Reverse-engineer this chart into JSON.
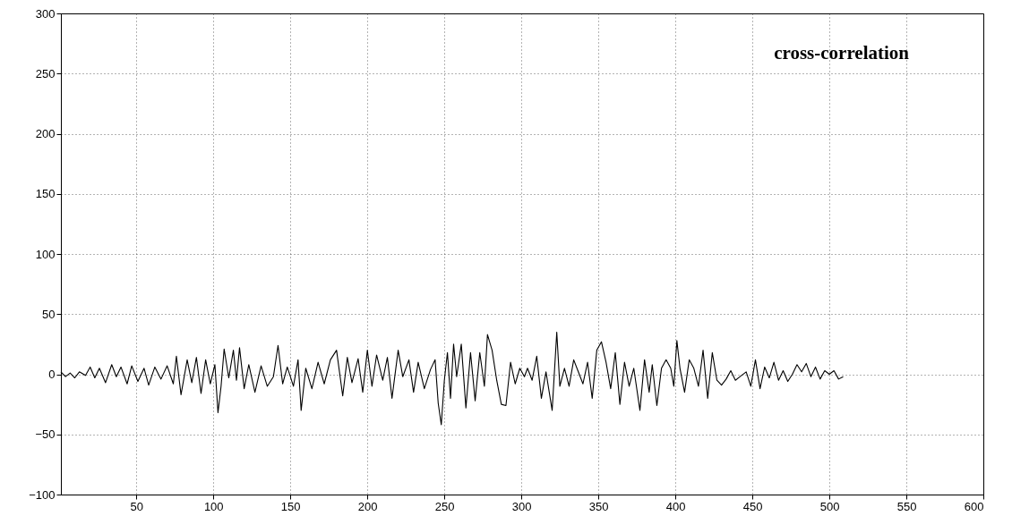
{
  "chart_data": {
    "type": "line",
    "annotations": [
      "cross-correlation"
    ],
    "x": [
      1,
      4,
      7,
      10,
      13,
      17,
      20,
      23,
      26,
      30,
      34,
      37,
      40,
      44,
      47,
      51,
      55,
      58,
      62,
      66,
      70,
      74,
      76,
      79,
      83,
      86,
      89,
      92,
      95,
      98,
      101,
      103,
      105,
      107,
      110,
      113,
      115,
      117,
      120,
      123,
      127,
      131,
      135,
      139,
      142,
      145,
      148,
      152,
      155,
      157,
      160,
      164,
      168,
      172,
      176,
      180,
      184,
      187,
      190,
      194,
      197,
      200,
      203,
      206,
      210,
      213,
      216,
      220,
      223,
      227,
      230,
      233,
      237,
      241,
      244,
      246,
      248,
      250,
      252,
      254,
      256,
      258,
      261,
      264,
      267,
      270,
      273,
      276,
      278,
      281,
      284,
      287,
      290,
      293,
      296,
      299,
      302,
      304,
      307,
      310,
      313,
      316,
      320,
      323,
      325,
      328,
      331,
      334,
      337,
      340,
      343,
      346,
      349,
      352,
      355,
      358,
      361,
      364,
      367,
      370,
      373,
      377,
      380,
      383,
      385,
      388,
      391,
      394,
      397,
      399,
      401,
      403,
      406,
      409,
      412,
      415,
      418,
      421,
      424,
      427,
      430,
      433,
      436,
      439,
      442,
      446,
      449,
      452,
      455,
      458,
      461,
      464,
      467,
      470,
      473,
      476,
      479,
      482,
      485,
      488,
      491,
      494,
      497,
      500,
      503,
      506,
      509
    ],
    "series": [
      {
        "color": "#000000",
        "values": [
          2,
          -2,
          1,
          -3,
          2,
          -1,
          6,
          -3,
          5,
          -7,
          8,
          -2,
          6,
          -8,
          7,
          -6,
          5,
          -9,
          6,
          -4,
          7,
          -8,
          15,
          -17,
          12,
          -7,
          14,
          -16,
          12,
          -8,
          8,
          -32,
          -10,
          21,
          -3,
          20,
          -5,
          22,
          -12,
          8,
          -15,
          7,
          -10,
          -2,
          24,
          -8,
          6,
          -10,
          12,
          -30,
          5,
          -12,
          10,
          -8,
          12,
          20,
          -18,
          14,
          -7,
          13,
          -15,
          20,
          -10,
          16,
          -5,
          14,
          -20,
          20,
          -2,
          12,
          -15,
          10,
          -12,
          4,
          12,
          -24,
          -42,
          -5,
          18,
          -20,
          25,
          -2,
          25,
          -28,
          18,
          -22,
          18,
          -10,
          33,
          20,
          -5,
          -25,
          -26,
          10,
          -8,
          5,
          -2,
          5,
          -5,
          15,
          -20,
          2,
          -30,
          35,
          -10,
          5,
          -10,
          12,
          2,
          -8,
          10,
          -20,
          20,
          27,
          10,
          -12,
          18,
          -25,
          10,
          -10,
          5,
          -30,
          12,
          -15,
          8,
          -26,
          5,
          12,
          5,
          -10,
          28,
          5,
          -15,
          12,
          5,
          -10,
          20,
          -20,
          18,
          -5,
          -9,
          -4,
          3,
          -5,
          -2,
          2,
          -10,
          12,
          -12,
          6,
          -3,
          10,
          -5,
          3,
          -6,
          0,
          8,
          2,
          9,
          -2,
          6,
          -4,
          3,
          0,
          3,
          -4,
          -2
        ]
      }
    ],
    "xlim": [
      1,
      600
    ],
    "xticks": [
      50,
      100,
      150,
      200,
      250,
      300,
      350,
      400,
      450,
      500,
      550,
      600
    ],
    "ylim": [
      -100,
      300
    ],
    "yticks": [
      -100,
      -50,
      0,
      50,
      100,
      150,
      200,
      250,
      300
    ],
    "grid": true,
    "line_style": "solid",
    "marker": "none"
  }
}
